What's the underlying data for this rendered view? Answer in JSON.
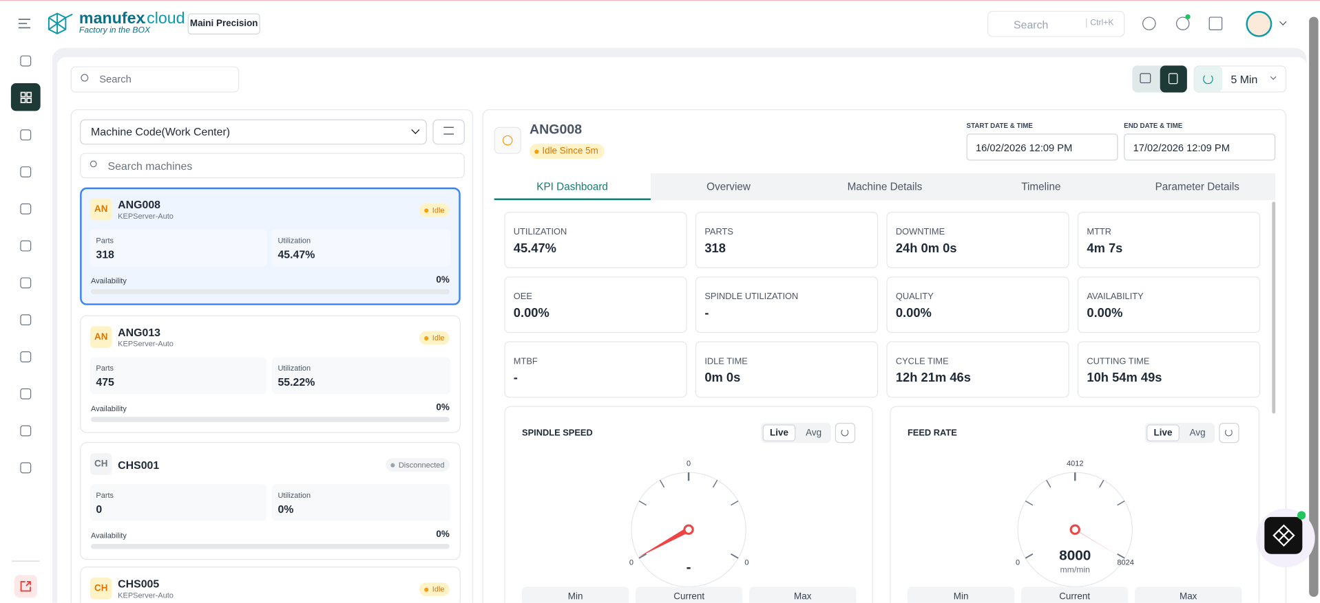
{
  "header": {
    "brand_name": "manufex",
    "brand_suffix": ".cloud",
    "tagline": "Factory in the BOX",
    "company": "Maini Precision",
    "search": "Search",
    "shortcut": "Ctrl+K"
  },
  "toolbar": {
    "search": "Search",
    "refresh_interval": "5 Min"
  },
  "machine_list": {
    "filter": "Machine Code(Work Center)",
    "search": "Search machines",
    "machines": [
      {
        "avatar": "AN",
        "code": "ANG008",
        "source": "KEPServer-Auto",
        "status": "Idle",
        "parts_label": "Parts",
        "parts": "318",
        "utilization_label": "Utilization",
        "utilization": "45.47%",
        "availability_label": "Availability",
        "availability": "0%"
      },
      {
        "avatar": "AN",
        "code": "ANG013",
        "source": "KEPServer-Auto",
        "status": "Idle",
        "parts_label": "Parts",
        "parts": "475",
        "utilization_label": "Utilization",
        "utilization": "55.22%",
        "availability_label": "Availability",
        "availability": "0%"
      },
      {
        "avatar": "CH",
        "code": "CHS001",
        "status": "Disconnected",
        "parts_label": "Parts",
        "parts": "0",
        "utilization_label": "Utilization",
        "utilization": "0%",
        "availability_label": "Availability",
        "availability": "0%"
      },
      {
        "avatar": "CH",
        "code": "CHS005",
        "source": "KEPServer-Auto",
        "status": "Idle"
      }
    ]
  },
  "detail": {
    "code": "ANG008",
    "status": "Idle Since 5m",
    "start_label": "START DATE & TIME",
    "start": "16/02/2026 12:09 PM",
    "end_label": "END DATE & TIME",
    "end": "17/02/2026 12:09 PM",
    "tabs": [
      "KPI Dashboard",
      "Overview",
      "Machine Details",
      "Timeline",
      "Parameter Details"
    ],
    "kpis": [
      {
        "label": "UTILIZATION",
        "value": "45.47%"
      },
      {
        "label": "PARTS",
        "value": "318"
      },
      {
        "label": "DOWNTIME",
        "value": "24h 0m 0s"
      },
      {
        "label": "MTTR",
        "value": "4m 7s"
      },
      {
        "label": "OEE",
        "value": "0.00%"
      },
      {
        "label": "SPINDLE UTILIZATION",
        "value": "-"
      },
      {
        "label": "QUALITY",
        "value": "0.00%"
      },
      {
        "label": "AVAILABILITY",
        "value": "0.00%"
      },
      {
        "label": "MTBF",
        "value": "-"
      },
      {
        "label": "IDLE TIME",
        "value": "0m 0s"
      },
      {
        "label": "CYCLE TIME",
        "value": "12h 21m 46s"
      },
      {
        "label": "CUTTING TIME",
        "value": "10h 54m 49s"
      }
    ],
    "gauges": [
      {
        "title": "SPINDLE SPEED",
        "modes": [
          "Live",
          "Avg"
        ],
        "scale_top": "0",
        "scale_min": "0",
        "scale_max": "0",
        "value": "-",
        "stats": [
          "Min",
          "Current",
          "Max"
        ]
      },
      {
        "title": "FEED RATE",
        "modes": [
          "Live",
          "Avg"
        ],
        "scale_top": "4012",
        "scale_min": "0",
        "scale_max": "8024",
        "value": "8000",
        "unit": "mm/min",
        "stats": [
          "Min",
          "Current",
          "Max"
        ]
      }
    ]
  }
}
